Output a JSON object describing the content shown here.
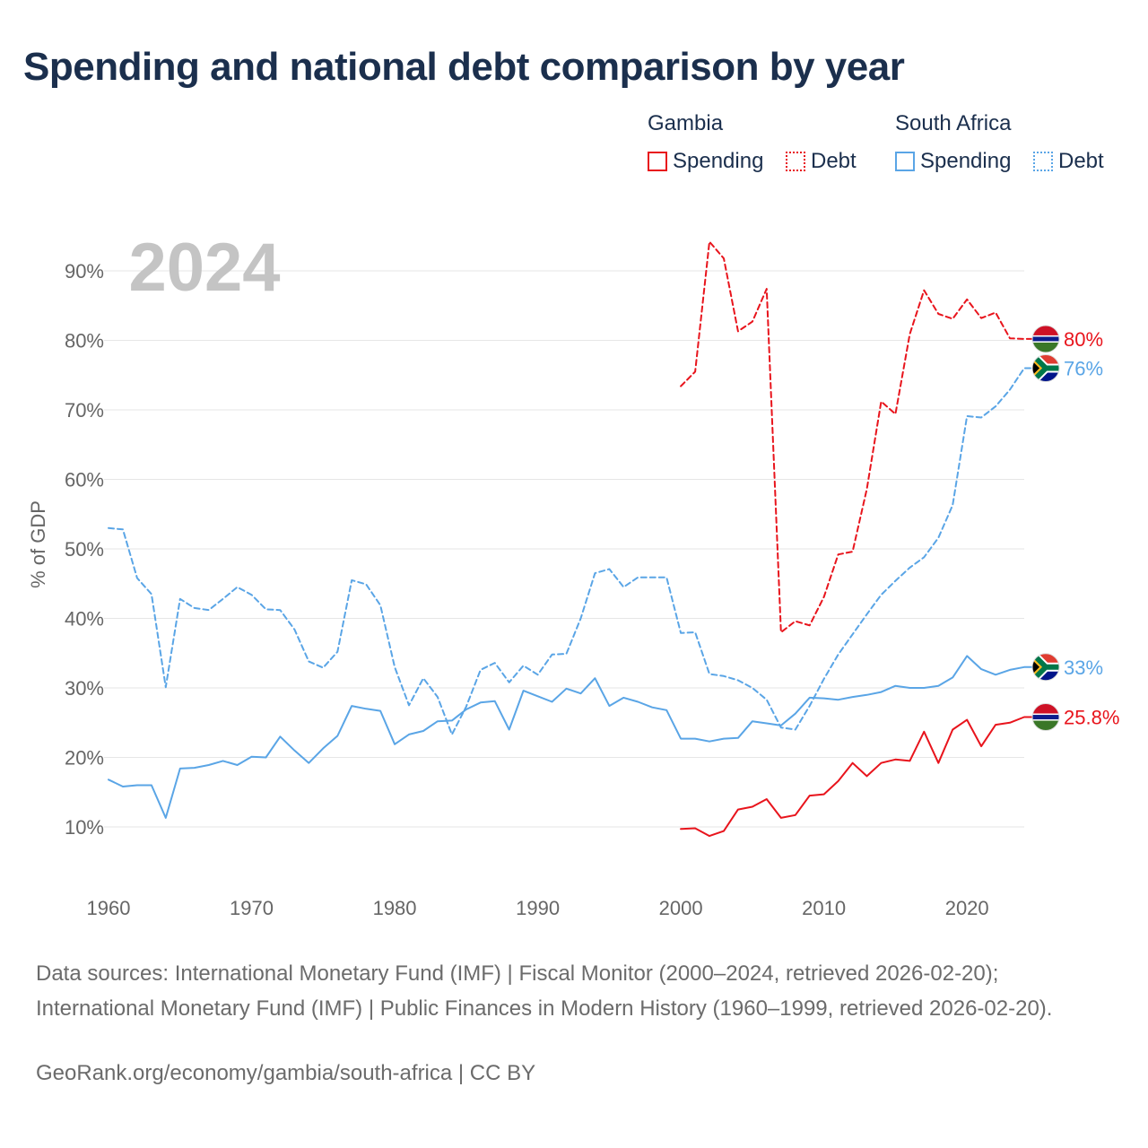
{
  "title": "Spending and national debt comparison by year",
  "legend": {
    "groups": [
      {
        "label": "Gambia",
        "items": [
          {
            "label": "Spending"
          },
          {
            "label": "Debt"
          }
        ]
      },
      {
        "label": "South Africa",
        "items": [
          {
            "label": "Spending"
          },
          {
            "label": "Debt"
          }
        ]
      }
    ]
  },
  "colors": {
    "gambia": "#e8141c",
    "south_africa": "#5aa5e6"
  },
  "footer": {
    "source": "Data sources: International Monetary Fund (IMF) | Fiscal Monitor (2000–2024, retrieved 2026-02-20); International Monetary Fund (IMF) | Public Finances in Modern History (1960–1999, retrieved 2026-02-20).",
    "credit": "GeoRank.org/economy/gambia/south-africa | CC BY"
  },
  "chart_data": {
    "type": "line",
    "title": "Spending and national debt comparison by year",
    "year_label": "2024",
    "ylabel": "% of GDP",
    "xlabel": "",
    "xlim": [
      1960,
      2024
    ],
    "ylim": [
      0,
      95
    ],
    "x_ticks": [
      1960,
      1970,
      1980,
      1990,
      2000,
      2010,
      2020
    ],
    "y_ticks": [
      10,
      20,
      30,
      40,
      50,
      60,
      70,
      80,
      90
    ],
    "y_tick_labels": [
      "10%",
      "20%",
      "30%",
      "40%",
      "50%",
      "60%",
      "70%",
      "80%",
      "90%"
    ],
    "series": [
      {
        "name": "Gambia Spending",
        "country": "Gambia",
        "metric": "Spending",
        "color": "#e8141c",
        "dashed": false,
        "flag": "gambia",
        "end_label": "25.8%",
        "x": [
          2000,
          2001,
          2002,
          2003,
          2004,
          2005,
          2006,
          2007,
          2008,
          2009,
          2010,
          2011,
          2012,
          2013,
          2014,
          2015,
          2016,
          2017,
          2018,
          2019,
          2020,
          2021,
          2022,
          2023,
          2024
        ],
        "values": [
          9.7,
          9.8,
          8.7,
          9.4,
          12.5,
          12.9,
          14.0,
          11.3,
          11.7,
          14.5,
          14.7,
          16.6,
          19.2,
          17.3,
          19.2,
          19.7,
          19.5,
          23.7,
          19.2,
          24.0,
          25.4,
          21.6,
          24.7,
          25.0,
          25.8
        ]
      },
      {
        "name": "Gambia Debt",
        "country": "Gambia",
        "metric": "Debt",
        "color": "#e8141c",
        "dashed": true,
        "flag": "gambia",
        "end_label": "80%",
        "x": [
          2000,
          2001,
          2002,
          2003,
          2004,
          2005,
          2006,
          2007,
          2008,
          2009,
          2010,
          2011,
          2012,
          2013,
          2014,
          2015,
          2016,
          2017,
          2018,
          2019,
          2020,
          2021,
          2022,
          2023,
          2024
        ],
        "values": [
          73.4,
          75.5,
          94.2,
          91.8,
          81.3,
          82.7,
          87.4,
          38.0,
          39.6,
          39.0,
          43.1,
          49.2,
          49.6,
          58.6,
          71.2,
          69.4,
          80.9,
          87.2,
          83.8,
          83.1,
          85.9,
          83.2,
          84.0,
          80.3,
          80.2
        ]
      },
      {
        "name": "South Africa Spending",
        "country": "South Africa",
        "metric": "Spending",
        "color": "#5aa5e6",
        "dashed": false,
        "flag": "south_africa",
        "end_label": "33%",
        "x": [
          1960,
          1961,
          1962,
          1963,
          1964,
          1965,
          1966,
          1967,
          1968,
          1969,
          1970,
          1971,
          1972,
          1973,
          1974,
          1975,
          1976,
          1977,
          1978,
          1979,
          1980,
          1981,
          1982,
          1983,
          1984,
          1985,
          1986,
          1987,
          1988,
          1989,
          1990,
          1991,
          1992,
          1993,
          1994,
          1995,
          1996,
          1997,
          1998,
          1999,
          2000,
          2001,
          2002,
          2003,
          2004,
          2005,
          2006,
          2007,
          2008,
          2009,
          2010,
          2011,
          2012,
          2013,
          2014,
          2015,
          2016,
          2017,
          2018,
          2019,
          2020,
          2021,
          2022,
          2023,
          2024
        ],
        "values": [
          16.8,
          15.8,
          16.0,
          16.0,
          11.3,
          18.4,
          18.5,
          18.9,
          19.5,
          18.9,
          20.1,
          20.0,
          23.0,
          21.0,
          19.2,
          21.3,
          23.1,
          27.4,
          27.0,
          26.7,
          21.9,
          23.3,
          23.8,
          25.2,
          25.3,
          26.9,
          27.9,
          28.1,
          24.0,
          29.6,
          28.8,
          28.0,
          29.9,
          29.2,
          31.4,
          27.4,
          28.6,
          28.0,
          27.2,
          26.8,
          22.7,
          22.7,
          22.3,
          22.7,
          22.8,
          25.2,
          24.9,
          24.6,
          26.3,
          28.6,
          28.5,
          28.3,
          28.7,
          29.0,
          29.4,
          30.3,
          30.0,
          30.0,
          30.3,
          31.5,
          34.6,
          32.7,
          31.9,
          32.6,
          33.0
        ]
      },
      {
        "name": "South Africa Debt",
        "country": "South Africa",
        "metric": "Debt",
        "color": "#5aa5e6",
        "dashed": true,
        "flag": "south_africa",
        "end_label": "76%",
        "x": [
          1960,
          1961,
          1962,
          1963,
          1964,
          1965,
          1966,
          1967,
          1968,
          1969,
          1970,
          1971,
          1972,
          1973,
          1974,
          1975,
          1976,
          1977,
          1978,
          1979,
          1980,
          1981,
          1982,
          1983,
          1984,
          1985,
          1986,
          1987,
          1988,
          1989,
          1990,
          1991,
          1992,
          1993,
          1994,
          1995,
          1996,
          1997,
          1998,
          1999,
          2000,
          2001,
          2002,
          2003,
          2004,
          2005,
          2006,
          2007,
          2008,
          2009,
          2010,
          2011,
          2012,
          2013,
          2014,
          2015,
          2016,
          2017,
          2018,
          2019,
          2020,
          2021,
          2022,
          2023,
          2024
        ],
        "values": [
          53.0,
          52.8,
          45.8,
          43.5,
          30.1,
          42.8,
          41.5,
          41.2,
          42.8,
          44.5,
          43.4,
          41.3,
          41.2,
          38.4,
          33.8,
          32.9,
          35.2,
          45.5,
          44.9,
          41.9,
          33.0,
          27.5,
          31.4,
          28.7,
          23.3,
          27.3,
          32.6,
          33.6,
          30.8,
          33.2,
          31.9,
          34.8,
          34.9,
          40.0,
          46.5,
          47.1,
          44.5,
          45.9,
          45.9,
          45.9,
          37.9,
          38.0,
          32.0,
          31.7,
          31.1,
          30.0,
          28.3,
          24.3,
          24.0,
          27.4,
          31.3,
          34.8,
          37.7,
          40.6,
          43.4,
          45.4,
          47.3,
          48.8,
          51.6,
          56.3,
          69.1,
          68.9,
          70.5,
          72.9,
          76.0
        ]
      }
    ]
  }
}
